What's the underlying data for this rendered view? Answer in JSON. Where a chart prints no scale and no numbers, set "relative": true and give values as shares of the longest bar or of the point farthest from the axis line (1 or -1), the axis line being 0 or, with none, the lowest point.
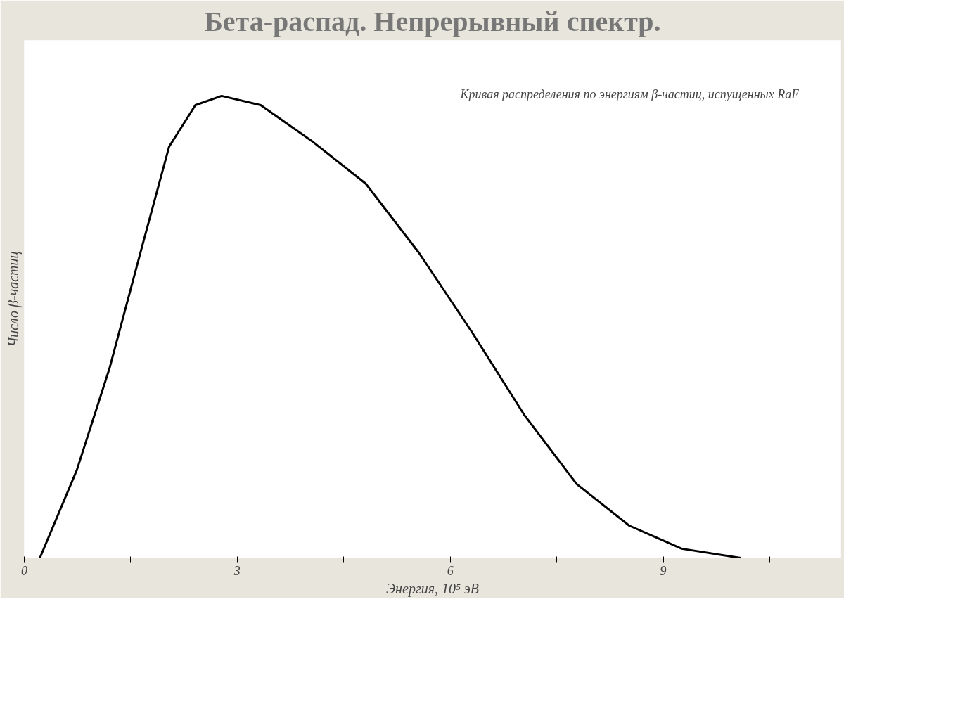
{
  "chart_data": {
    "type": "line",
    "title": "Бета-распад. Непрерывный спектр.",
    "xlabel": "Энергия, 10⁵ эВ",
    "ylabel": "Число β-частиц",
    "relative": true,
    "x": [
      0.22,
      0.74,
      1.2,
      1.67,
      2.04,
      2.41,
      2.78,
      3.33,
      4.07,
      4.81,
      5.56,
      6.3,
      7.04,
      7.78,
      8.52,
      9.26,
      10.09
    ],
    "series": [
      {
        "color": "#000000",
        "values": [
          0,
          0.19,
          0.41,
          0.68,
          0.89,
          0.98,
          1.0,
          0.98,
          0.9,
          0.81,
          0.66,
          0.49,
          0.31,
          0.16,
          0.07,
          0.02,
          0
        ]
      }
    ],
    "xlim": [
      0,
      11.5
    ],
    "xticks": [
      0,
      {
        "value": 1.5,
        "label": null
      },
      3,
      {
        "value": 4.5,
        "label": null
      },
      6,
      {
        "value": 7.5,
        "label": null
      },
      9,
      {
        "value": 10.5,
        "label": null
      }
    ],
    "annotations": [
      "Кривая распределения по энергиям β-частиц, испущенных RaE"
    ],
    "grid": false,
    "line_style": "solid",
    "marker": "none"
  }
}
